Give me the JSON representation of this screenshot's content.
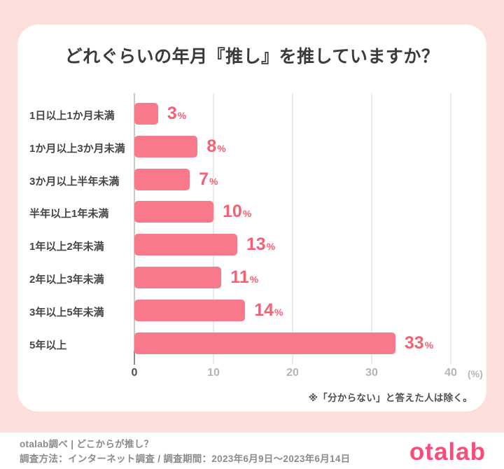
{
  "page": {
    "background_color": "#fcdeda",
    "card_color": "#ffffff",
    "footer": {
      "line1": "otalab調べ | どこからが推し？",
      "line2": "調査方法：インターネット調査 / 調査期間：2023年6月9日〜2023年6月14日",
      "logo_text": "otalab",
      "logo_color": "#f84d7a"
    }
  },
  "card": {
    "title": "どれぐらいの年月『推し』を推していますか？",
    "footnote": "※「分からない」と答えた人は除く。"
  },
  "chart_data": {
    "type": "bar",
    "orientation": "horizontal",
    "title": "どれぐらいの年月『推し』を推していますか？",
    "categories": [
      "1日以上1か月未満",
      "1か月以上3か月未満",
      "3か月以上半年未満",
      "半年以上1年未満",
      "1年以上2年未満",
      "2年以上3年未満",
      "3年以上5年未満",
      "5年以上"
    ],
    "values": [
      3,
      8,
      7,
      10,
      13,
      11,
      14,
      33
    ],
    "unit": "%",
    "xlim": [
      0,
      40
    ],
    "x_ticks": [
      0,
      10,
      20,
      30,
      40
    ],
    "x_axis_suffix": "(%)",
    "grid": true,
    "legend": false,
    "bar_color": "#f8788c",
    "value_label_color": "#f75f73",
    "gridline_color": "#eaeaea"
  }
}
